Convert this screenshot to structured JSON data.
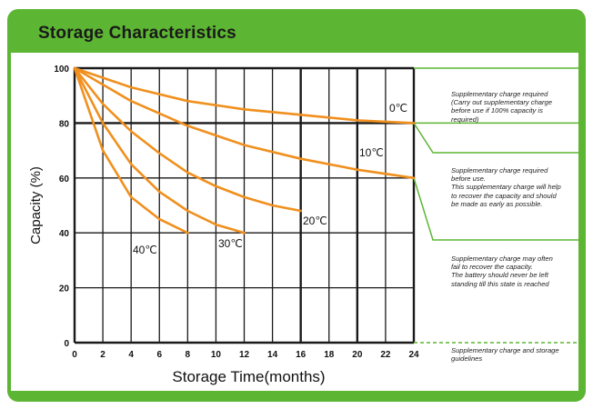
{
  "title": "Storage Characteristics",
  "chart_data": {
    "type": "line",
    "xlabel": "Storage Time(months)",
    "ylabel": "Capacity  (%)",
    "xlim": [
      0,
      24
    ],
    "ylim": [
      0,
      100
    ],
    "x_ticks": [
      "0",
      "2",
      "4",
      "6",
      "8",
      "10",
      "12",
      "14",
      "16",
      "18",
      "20",
      "22",
      "24"
    ],
    "y_ticks": [
      "0",
      "20",
      "40",
      "60",
      "80",
      "100"
    ],
    "grid": true,
    "series": [
      {
        "name": "0℃",
        "x": [
          0,
          4,
          8,
          12,
          16,
          20,
          24
        ],
        "y": [
          100,
          93,
          88,
          85,
          83,
          81,
          80
        ]
      },
      {
        "name": "10℃",
        "x": [
          0,
          4,
          8,
          12,
          16,
          20,
          24
        ],
        "y": [
          100,
          88,
          79,
          72,
          67,
          63,
          60
        ]
      },
      {
        "name": "20℃",
        "x": [
          0,
          2,
          4,
          6,
          8,
          10,
          12,
          14,
          16
        ],
        "y": [
          100,
          87,
          77,
          69,
          62,
          57,
          53,
          50,
          48
        ]
      },
      {
        "name": "30℃",
        "x": [
          0,
          2,
          4,
          6,
          8,
          10,
          12
        ],
        "y": [
          100,
          80,
          65,
          55,
          48,
          43,
          40
        ]
      },
      {
        "name": "40℃",
        "x": [
          0,
          2,
          4,
          6,
          8
        ],
        "y": [
          100,
          70,
          53,
          45,
          40
        ]
      }
    ],
    "colors": {
      "curve": "#f0901e",
      "grid": "#1a1a1a",
      "frame_green": "#5cb533",
      "guide_green": "#5cb533"
    }
  },
  "notes": [
    {
      "lines": [
        "Supplementary charge required",
        "(Carry out supplementary charge",
        "before use if 100% capacity is",
        "required)"
      ]
    },
    {
      "lines": [
        "Supplementary charge required",
        "before use.",
        "This supplementary charge will help",
        "to recover the capacity and should",
        "be made  as early as possible."
      ]
    },
    {
      "lines": [
        "Supplementary charge may often",
        "fail to recover the capacity.",
        "The battery should never be left",
        "standing till this state is reached"
      ]
    },
    {
      "lines": [
        "Supplementary charge and storage",
        "guidelines"
      ]
    }
  ]
}
